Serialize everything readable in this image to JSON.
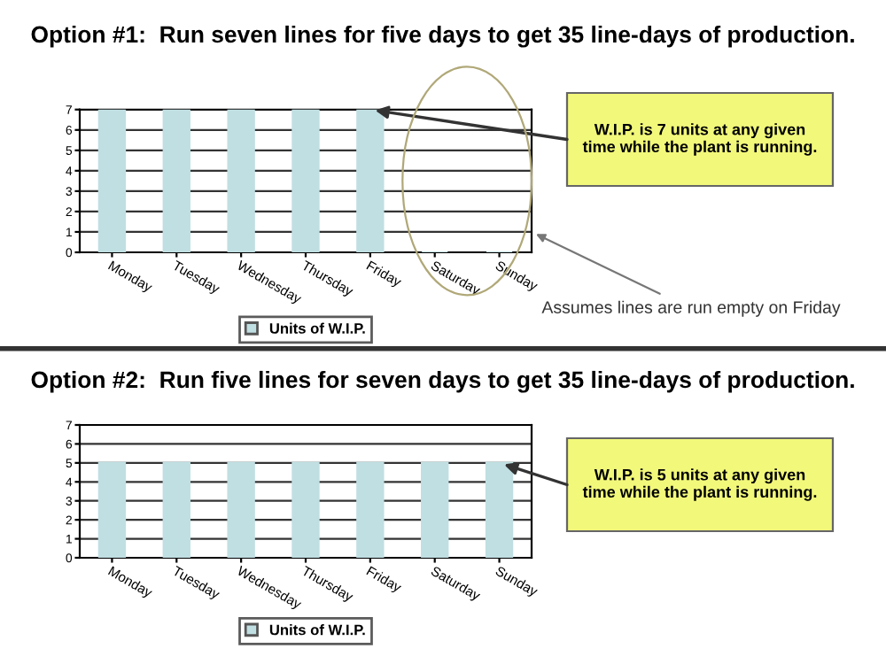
{
  "chart_data": [
    {
      "type": "bar",
      "title": "Option #1:  Run seven lines for five days to get 35 line-days of production.",
      "categories": [
        "Monday",
        "Tuesday",
        "Wednesday",
        "Thursday",
        "Friday",
        "Saturday",
        "Sunday"
      ],
      "series": [
        {
          "name": "Units of W.I.P.",
          "color": "#c0dfe2",
          "values": [
            7,
            7,
            7,
            7,
            7,
            0,
            0
          ]
        }
      ],
      "ylim": [
        0,
        7
      ],
      "yticks": [
        0,
        1,
        2,
        3,
        4,
        5,
        6,
        7
      ],
      "grid": "y",
      "legend": "bottom",
      "annotations": [
        {
          "text": "W.I.P. is 7 units at any given time while the plant is running.",
          "x": "Friday",
          "y": 7
        },
        "Assumes lines are run empty on Friday"
      ]
    },
    {
      "type": "bar",
      "title": "Option #2:  Run five lines for seven days to get 35 line-days of production.",
      "categories": [
        "Monday",
        "Tuesday",
        "Wednesday",
        "Thursday",
        "Friday",
        "Saturday",
        "Sunday"
      ],
      "series": [
        {
          "name": "Units of W.I.P.",
          "color": "#c0dfe2",
          "values": [
            5,
            5,
            5,
            5,
            5,
            5,
            5
          ]
        }
      ],
      "ylim": [
        0,
        7
      ],
      "yticks": [
        0,
        1,
        2,
        3,
        4,
        5,
        6,
        7
      ],
      "grid": "y",
      "legend": "bottom",
      "annotations": [
        {
          "text": "W.I.P. is 5 units at any given time while the plant is running.",
          "x": "Sunday",
          "y": 5
        }
      ]
    }
  ]
}
